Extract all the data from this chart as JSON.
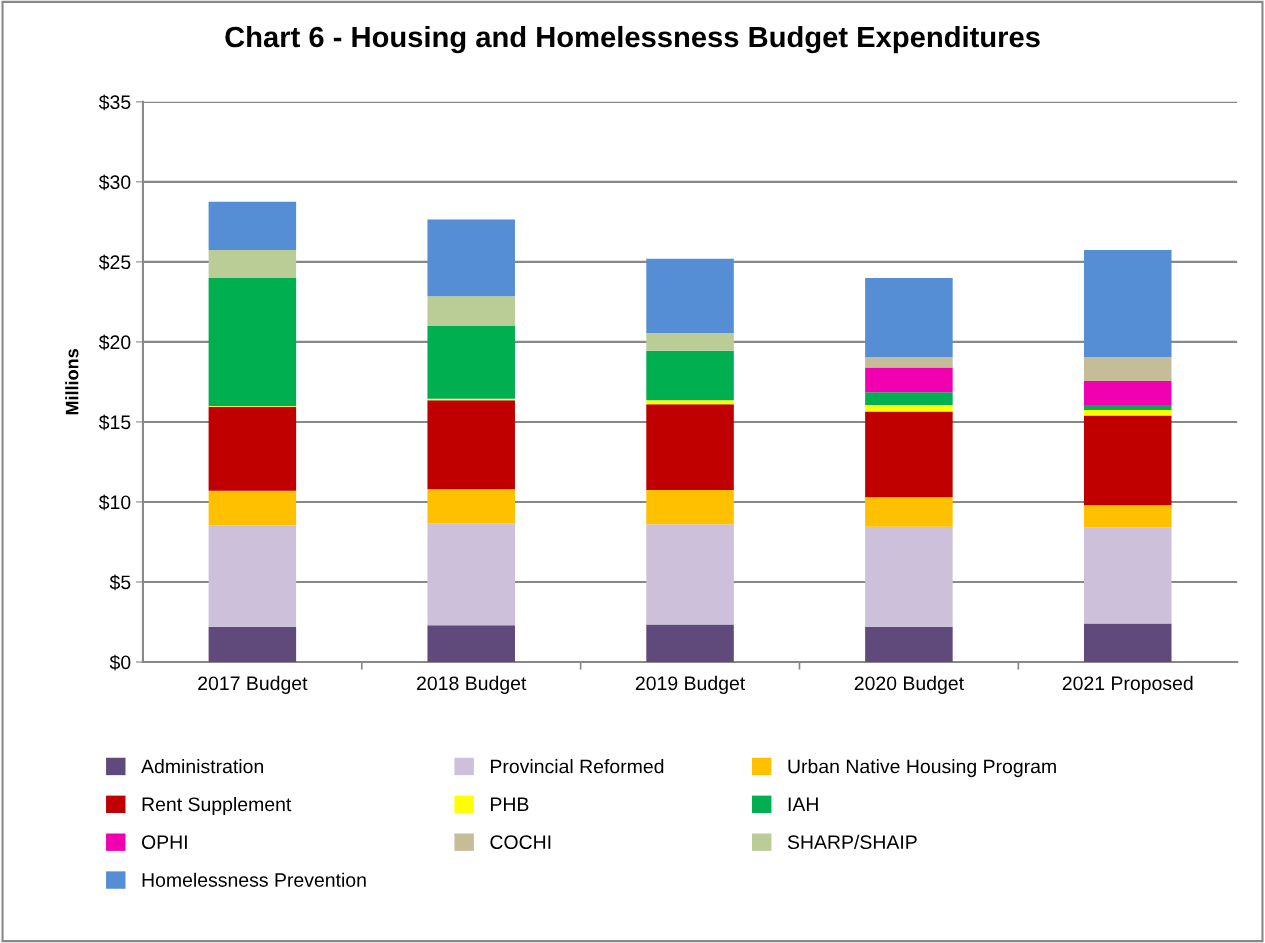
{
  "chart_data": {
    "type": "bar",
    "title": "Chart 6 - Housing and Homelessness Budget Expenditures",
    "ylabel": "Millions",
    "categories": [
      "2017 Budget",
      "2018 Budget",
      "2019 Budget",
      "2020 Budget",
      "2021 Proposed"
    ],
    "stacked": true,
    "series": [
      {
        "name": "Administration",
        "color": "#604a7b",
        "values": [
          2.2,
          2.3,
          2.35,
          2.2,
          2.4
        ]
      },
      {
        "name": "Provincial Reformed",
        "color": "#ccc0da",
        "values": [
          6.35,
          6.35,
          6.25,
          6.25,
          6.0
        ]
      },
      {
        "name": "Urban Native Housing Program",
        "color": "#ffc000",
        "values": [
          2.15,
          2.15,
          2.15,
          1.85,
          1.4
        ]
      },
      {
        "name": "Rent Supplement",
        "color": "#c00000",
        "values": [
          5.25,
          5.55,
          5.35,
          5.35,
          5.6
        ]
      },
      {
        "name": "PHB",
        "color": "#ffff00",
        "values": [
          0.05,
          0.1,
          0.25,
          0.4,
          0.35
        ]
      },
      {
        "name": "IAH",
        "color": "#00b050",
        "values": [
          8.0,
          4.55,
          3.1,
          0.8,
          0.3
        ]
      },
      {
        "name": "OPHI",
        "color": "#f000b0",
        "values": [
          0,
          0,
          0,
          1.55,
          1.5
        ]
      },
      {
        "name": "COCHI",
        "color": "#c4bd97",
        "values": [
          0,
          0,
          0,
          0.65,
          1.5
        ]
      },
      {
        "name": "SHARP/SHAIP",
        "color": "#bbcd97",
        "values": [
          1.75,
          1.85,
          1.1,
          0,
          0
        ]
      },
      {
        "name": "Homelessness Prevention",
        "color": "#558ed5",
        "values": [
          3.0,
          4.8,
          4.65,
          4.95,
          6.7
        ]
      }
    ],
    "ylim": [
      0,
      35
    ],
    "yticks": [
      {
        "value": 0,
        "label": "$0"
      },
      {
        "value": 5,
        "label": "$5"
      },
      {
        "value": 10,
        "label": "$10"
      },
      {
        "value": 15,
        "label": "$15"
      },
      {
        "value": 20,
        "label": "$20"
      },
      {
        "value": 25,
        "label": "$25"
      },
      {
        "value": 30,
        "label": "$30"
      },
      {
        "value": 35,
        "label": "$35"
      }
    ],
    "grid": "y",
    "legend": "bottom"
  }
}
